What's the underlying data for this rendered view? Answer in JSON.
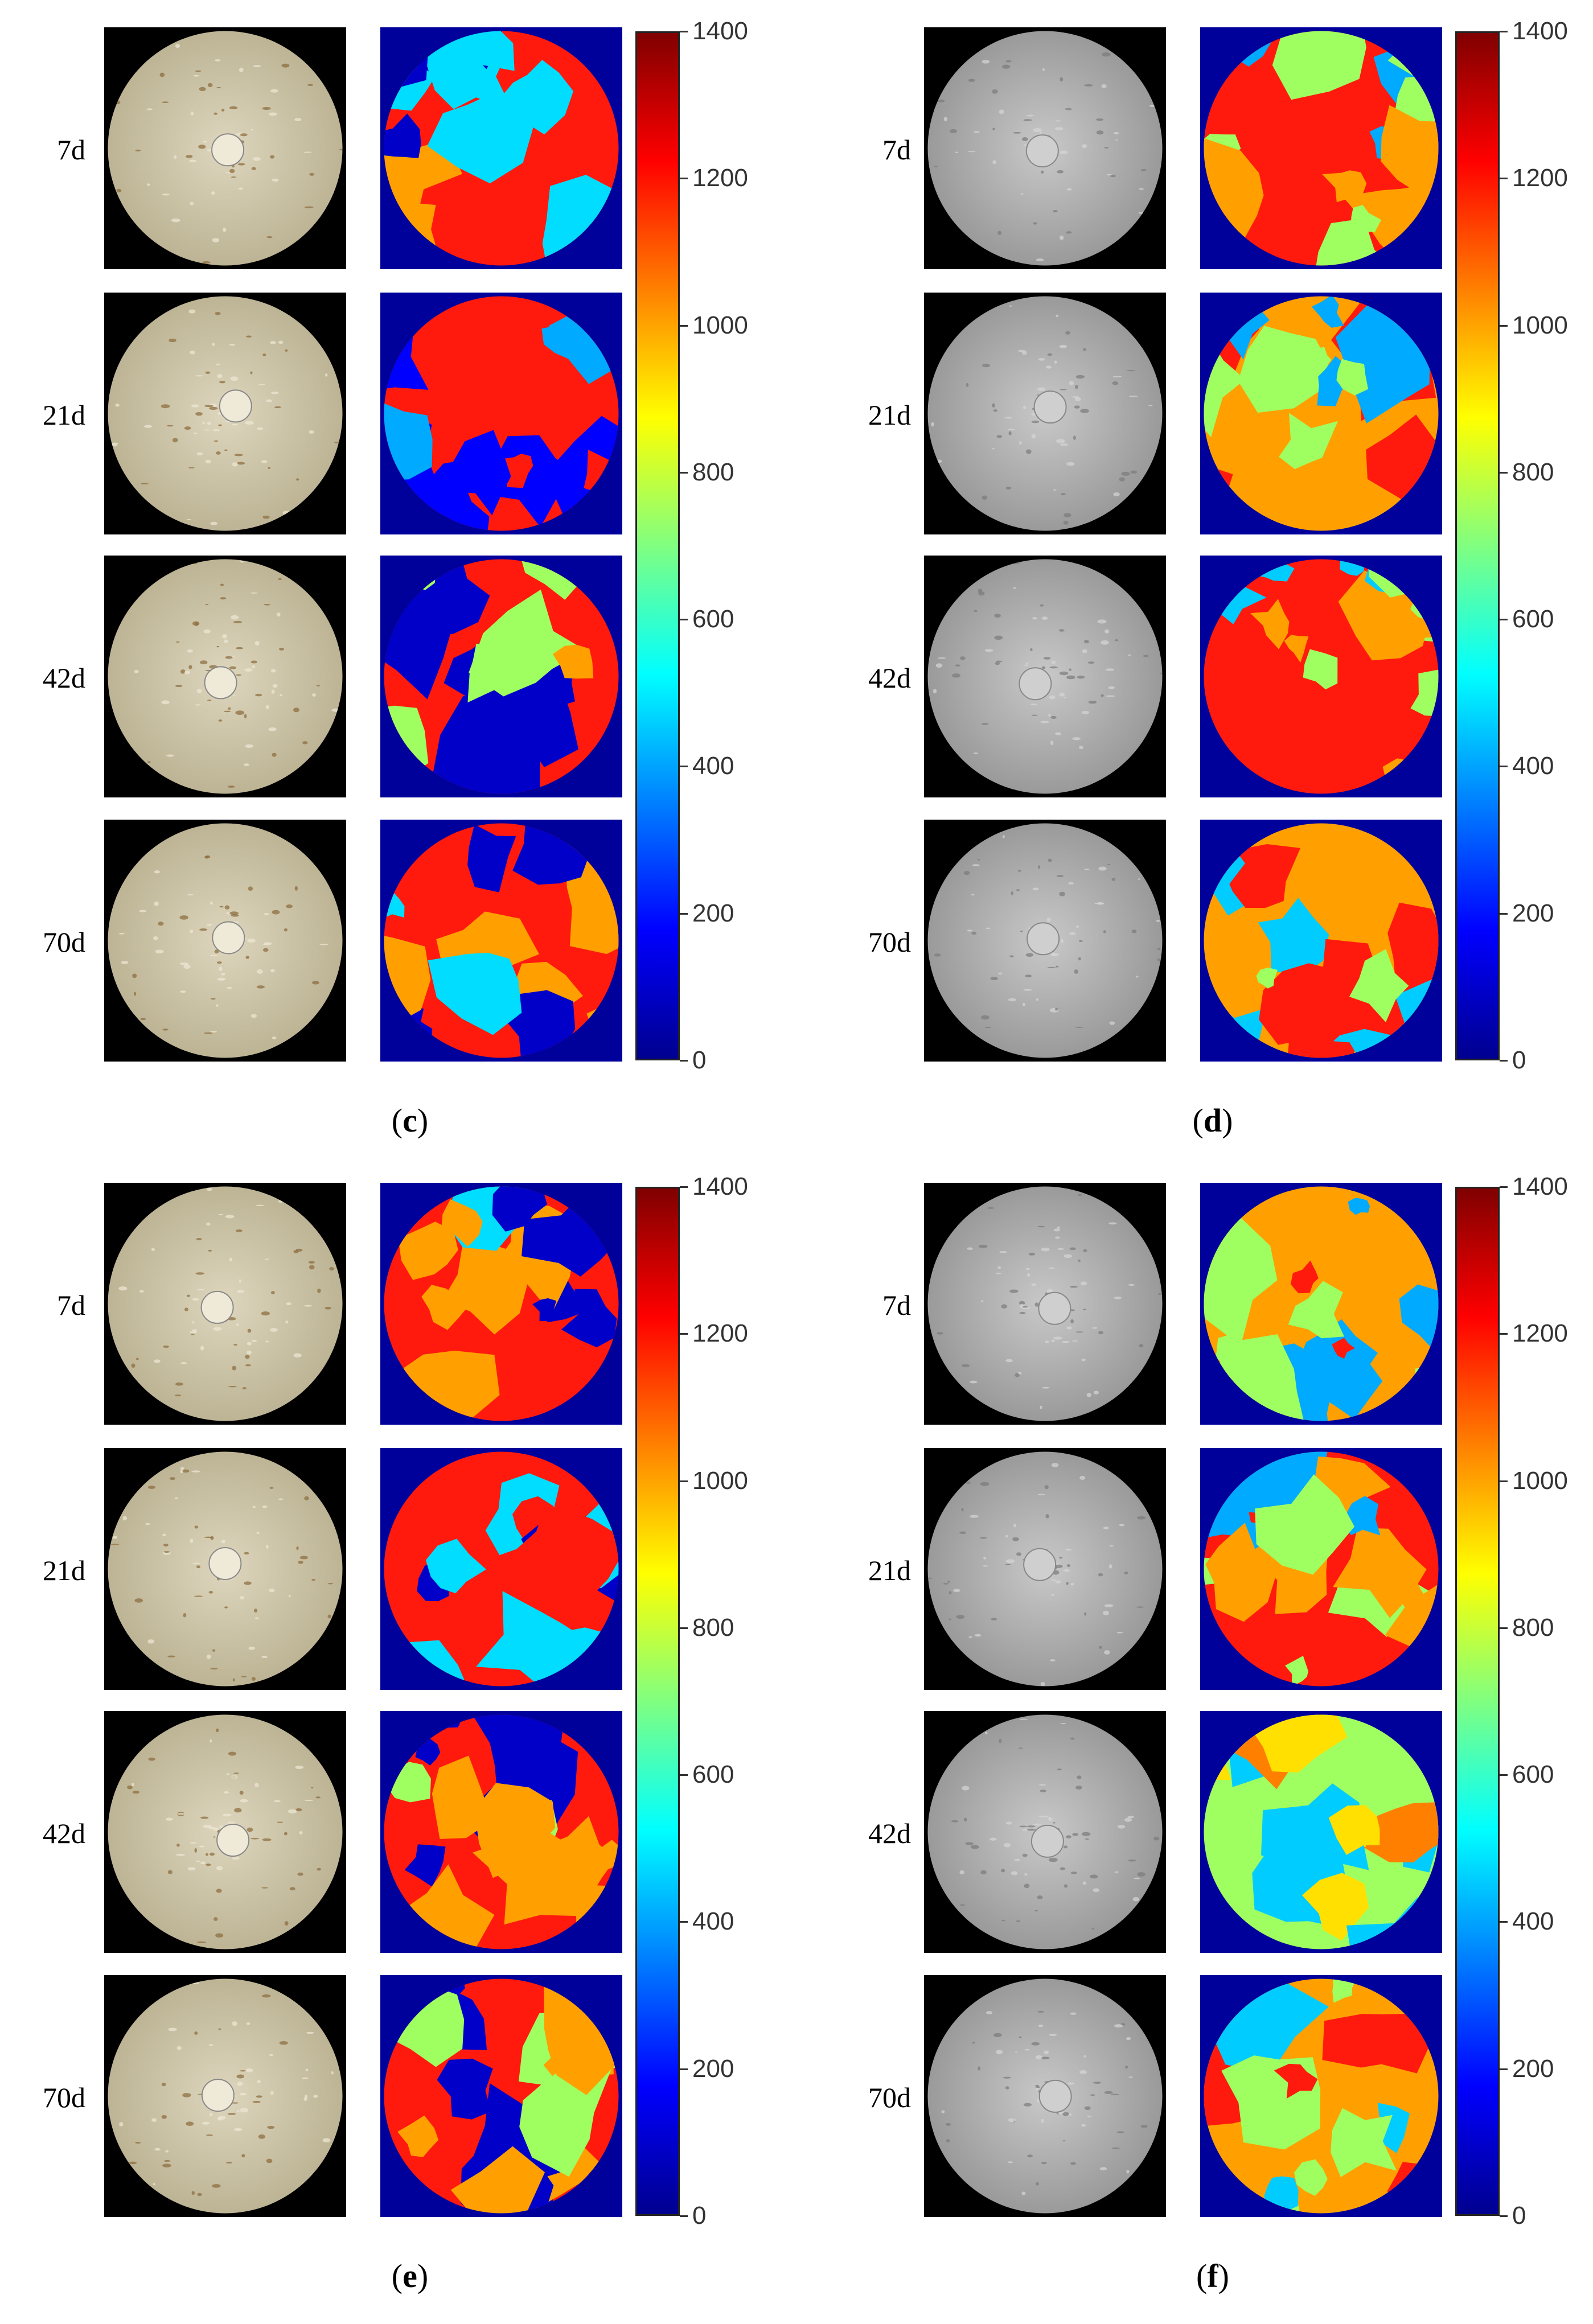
{
  "figure": {
    "panels": [
      {
        "caption_letter": "c",
        "photo_style": "yellowish",
        "maps": [
          "c7",
          "c21",
          "c42",
          "c70"
        ]
      },
      {
        "caption_letter": "d",
        "photo_style": "gray",
        "maps": [
          "d7",
          "d21",
          "d42",
          "d70"
        ]
      },
      {
        "caption_letter": "e",
        "photo_style": "yellowish",
        "maps": [
          "e7",
          "e21",
          "e42",
          "e70"
        ]
      },
      {
        "caption_letter": "f",
        "photo_style": "gray",
        "maps": [
          "f7",
          "f21",
          "f42",
          "f70"
        ]
      }
    ],
    "row_labels": [
      "7d",
      "21d",
      "42d",
      "70d"
    ],
    "colorbar": {
      "ticks": [
        "1400",
        "1200",
        "1000",
        "800",
        "600",
        "400",
        "200",
        "0"
      ],
      "min": 0,
      "max": 1400,
      "colormap": "jet"
    },
    "caption_open": "(",
    "caption_close": ")"
  }
}
